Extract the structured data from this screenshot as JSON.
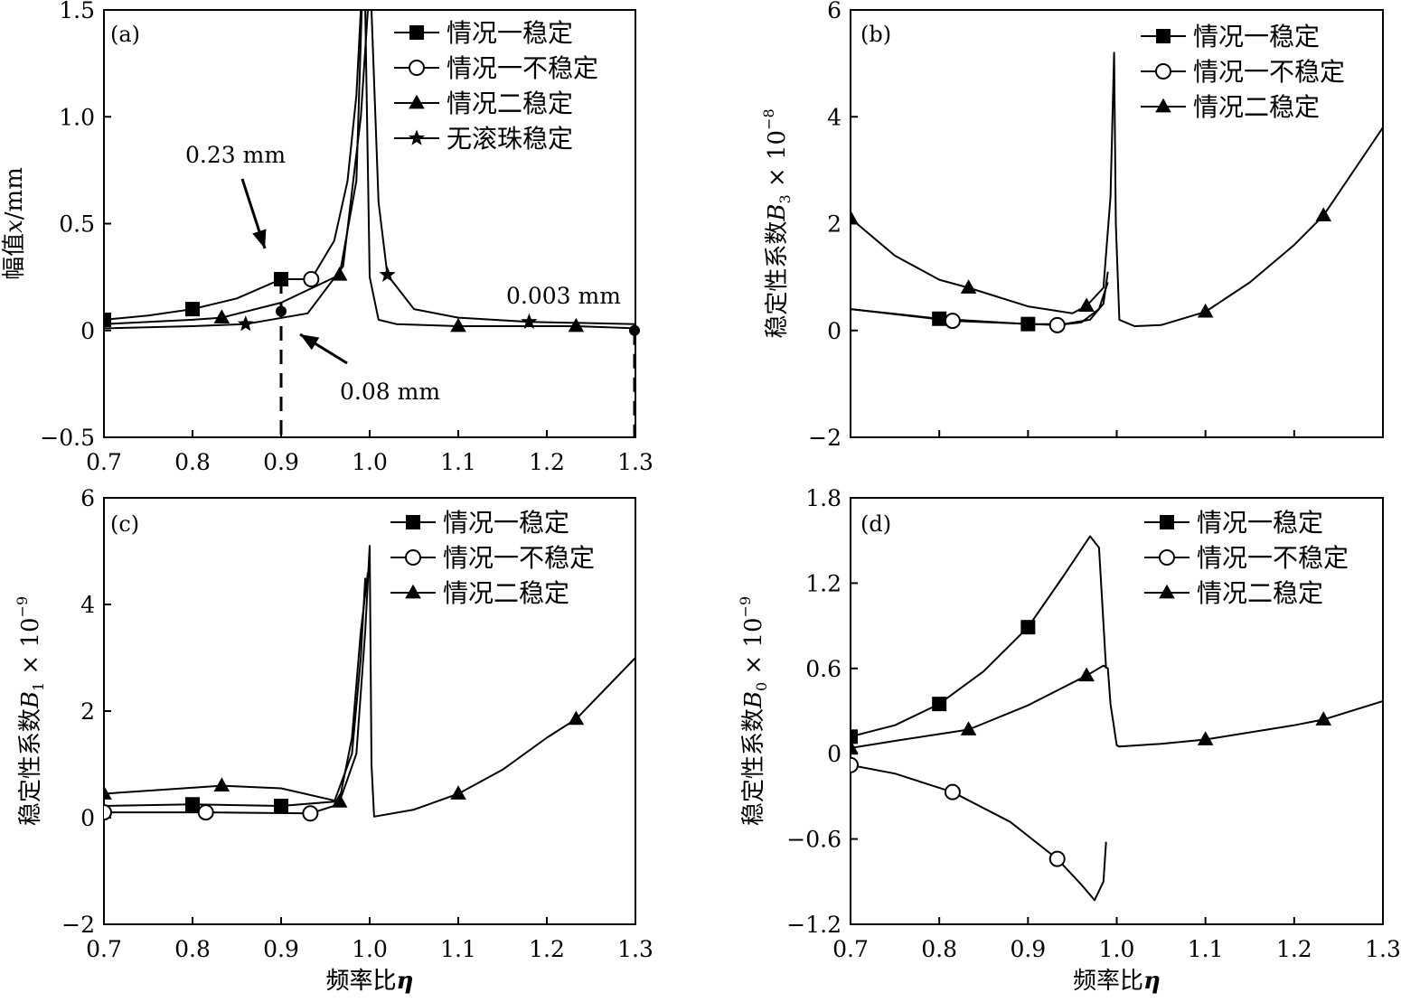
{
  "chart_data": [
    {
      "id": "a",
      "type": "line",
      "panel_label": "(a)",
      "xlabel": "频率比η",
      "ylabel": "幅值x/mm",
      "ylabel_parts": [
        "幅值",
        "x",
        "/mm"
      ],
      "xlim": [
        0.7,
        1.3
      ],
      "ylim": [
        -0.5,
        1.5
      ],
      "xticks": [
        "0.7",
        "0.8",
        "0.9",
        "1.0",
        "1.1",
        "1.2",
        "1.3"
      ],
      "yticks": [
        "−0.5",
        "0",
        "0.5",
        "1.0",
        "1.5"
      ],
      "ytick_values": [
        -0.5,
        0,
        0.5,
        1.0,
        1.5
      ],
      "series": [
        {
          "name": "情况一稳定",
          "marker": "square",
          "x": [
            0.7,
            0.75,
            0.8,
            0.85,
            0.9
          ],
          "y": [
            0.05,
            0.07,
            0.1,
            0.15,
            0.24
          ]
        },
        {
          "name": "情况一不稳定",
          "marker": "circle",
          "x": [
            0.9,
            0.934,
            0.96,
            0.975,
            0.985,
            0.99
          ],
          "y": [
            0.24,
            0.24,
            0.42,
            0.7,
            1.1,
            1.5
          ]
        },
        {
          "name": "情况二稳定",
          "marker": "triangle",
          "x": [
            0.7,
            0.8,
            0.833,
            0.9,
            0.966,
            0.985,
            0.991,
            0.995,
            1.0,
            1.01,
            1.03,
            1.1,
            1.2,
            1.233,
            1.3
          ],
          "y": [
            0.03,
            0.05,
            0.06,
            0.13,
            0.26,
            0.7,
            1.5,
            1.5,
            0.25,
            0.05,
            0.03,
            0.02,
            0.02,
            0.02,
            0.01
          ]
        },
        {
          "name": "无滚珠稳定",
          "marker": "star",
          "x": [
            0.7,
            0.8,
            0.86,
            0.93,
            0.97,
            0.99,
            0.998,
            1.002,
            1.01,
            1.02,
            1.05,
            1.1,
            1.18,
            1.3
          ],
          "y": [
            0.01,
            0.02,
            0.03,
            0.08,
            0.3,
            1.0,
            1.5,
            1.5,
            0.6,
            0.26,
            0.1,
            0.06,
            0.04,
            0.03
          ]
        }
      ],
      "annotations": [
        {
          "text": "0.23 mm",
          "points_to": [
            0.9,
            0.24
          ]
        },
        {
          "text": "0.08 mm",
          "points_to": [
            0.92,
            0.0
          ]
        },
        {
          "text": "0.003 mm",
          "points_to": [
            1.3,
            0.0
          ]
        }
      ],
      "legend": "top-right"
    },
    {
      "id": "b",
      "type": "line",
      "panel_label": "(b)",
      "xlabel": "",
      "ylabel": "稳定性系数B3×10^-8",
      "ylabel_parts": [
        "稳定性系数",
        "B",
        "3",
        " × 10",
        "−8"
      ],
      "xlim": [
        0.7,
        1.3
      ],
      "ylim": [
        -2,
        6
      ],
      "xticks": [],
      "yticks": [
        "−2",
        "0",
        "2",
        "4",
        "6"
      ],
      "ytick_values": [
        -2,
        0,
        2,
        4,
        6
      ],
      "series": [
        {
          "name": "情况一稳定",
          "marker": "square",
          "x": [
            0.7,
            0.8,
            0.9,
            0.94,
            0.97,
            0.985,
            0.99
          ],
          "y": [
            0.4,
            0.22,
            0.12,
            0.12,
            0.2,
            0.5,
            1.1
          ]
        },
        {
          "name": "情况一不稳定",
          "marker": "circle",
          "x": [
            0.7,
            0.815,
            0.933,
            0.96,
            0.98,
            0.99
          ],
          "y": [
            0.4,
            0.18,
            0.1,
            0.15,
            0.4,
            0.9
          ]
        },
        {
          "name": "情况二稳定",
          "marker": "triangle",
          "x": [
            0.7,
            0.75,
            0.8,
            0.833,
            0.9,
            0.95,
            0.966,
            0.985,
            0.993,
            0.997,
            0.999,
            1.003,
            1.02,
            1.05,
            1.1,
            1.15,
            1.2,
            1.233,
            1.3
          ],
          "y": [
            2.1,
            1.4,
            0.95,
            0.8,
            0.45,
            0.32,
            0.46,
            0.8,
            2.5,
            5.2,
            2.0,
            0.2,
            0.08,
            0.1,
            0.35,
            0.9,
            1.6,
            2.15,
            3.8
          ]
        }
      ],
      "legend": "top-right"
    },
    {
      "id": "c",
      "type": "line",
      "panel_label": "(c)",
      "xlabel": "频率比η",
      "ylabel": "稳定性系数B1×10^-9",
      "ylabel_parts": [
        "稳定性系数",
        "B",
        "1",
        " × 10",
        "−9"
      ],
      "xlim": [
        0.7,
        1.3
      ],
      "ylim": [
        -2,
        6
      ],
      "xticks": [
        "0.7",
        "0.8",
        "0.9",
        "1.0",
        "1.1",
        "1.2",
        "1.3"
      ],
      "yticks": [
        "−2",
        "0",
        "2",
        "4",
        "6"
      ],
      "ytick_values": [
        -2,
        0,
        2,
        4,
        6
      ],
      "series": [
        {
          "name": "情况一稳定",
          "marker": "square",
          "x": [
            0.7,
            0.8,
            0.9,
            0.96,
            0.98,
            0.99,
            0.995
          ],
          "y": [
            0.22,
            0.25,
            0.22,
            0.3,
            1.2,
            3.0,
            4.5
          ]
        },
        {
          "name": "情况一不稳定",
          "marker": "circle",
          "x": [
            0.7,
            0.815,
            0.933,
            0.965,
            0.98,
            0.99,
            0.998
          ],
          "y": [
            0.1,
            0.1,
            0.08,
            0.25,
            1.5,
            3.5,
            4.6
          ]
        },
        {
          "name": "情况二稳定",
          "marker": "triangle",
          "x": [
            0.7,
            0.833,
            0.9,
            0.966,
            0.985,
            0.995,
            1.0,
            1.002,
            1.005,
            1.05,
            1.1,
            1.15,
            1.2,
            1.233,
            1.3
          ],
          "y": [
            0.45,
            0.6,
            0.55,
            0.3,
            1.2,
            3.5,
            5.1,
            1.0,
            0.02,
            0.15,
            0.45,
            0.9,
            1.5,
            1.85,
            3.0
          ]
        }
      ],
      "legend": "top-right"
    },
    {
      "id": "d",
      "type": "line",
      "panel_label": "(d)",
      "xlabel": "频率比η",
      "ylabel": "稳定性系数B0×10^-9",
      "ylabel_parts": [
        "稳定性系数",
        "B",
        "0",
        " × 10",
        "−9"
      ],
      "xlim": [
        0.7,
        1.3
      ],
      "ylim": [
        -1.2,
        1.8
      ],
      "xticks": [
        "0.7",
        "0.8",
        "0.9",
        "1.0",
        "1.1",
        "1.2",
        "1.3"
      ],
      "yticks": [
        "−1.2",
        "−0.6",
        "0",
        "0.6",
        "1.2",
        "1.8"
      ],
      "ytick_values": [
        -1.2,
        -0.6,
        0,
        0.6,
        1.2,
        1.8
      ],
      "series": [
        {
          "name": "情况一稳定",
          "marker": "square",
          "x": [
            0.7,
            0.75,
            0.8,
            0.85,
            0.9,
            0.94,
            0.97,
            0.98,
            0.988
          ],
          "y": [
            0.12,
            0.2,
            0.35,
            0.58,
            0.89,
            1.25,
            1.53,
            1.45,
            0.6
          ]
        },
        {
          "name": "情况一不稳定",
          "marker": "circle",
          "x": [
            0.7,
            0.75,
            0.815,
            0.88,
            0.933,
            0.96,
            0.975,
            0.985,
            0.988
          ],
          "y": [
            -0.08,
            -0.14,
            -0.27,
            -0.48,
            -0.74,
            -0.92,
            -1.03,
            -0.9,
            -0.62
          ]
        },
        {
          "name": "情况二稳定",
          "marker": "triangle",
          "x": [
            0.7,
            0.75,
            0.833,
            0.9,
            0.966,
            0.985,
            0.99,
            0.993,
            1.0,
            1.003,
            1.05,
            1.1,
            1.2,
            1.233,
            1.3
          ],
          "y": [
            0.04,
            0.09,
            0.17,
            0.34,
            0.55,
            0.62,
            0.6,
            0.35,
            0.06,
            0.05,
            0.07,
            0.1,
            0.2,
            0.24,
            0.37
          ]
        }
      ],
      "legend": "top-right"
    }
  ]
}
